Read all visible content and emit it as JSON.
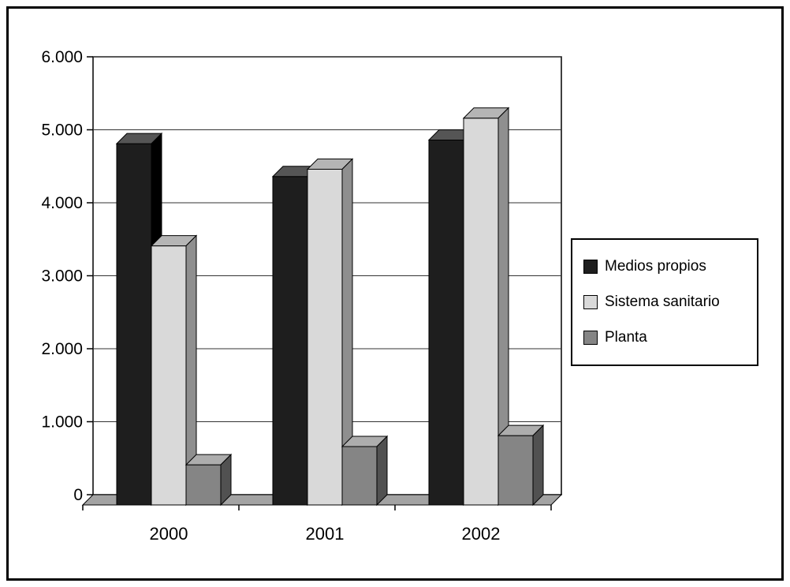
{
  "chart_data": {
    "type": "bar",
    "style": "3d-column",
    "title": "",
    "xlabel": "",
    "ylabel": "",
    "categories": [
      "2000",
      "2001",
      "2002"
    ],
    "series": [
      {
        "name": "Medios propios",
        "values": [
          4950,
          4500,
          5000
        ],
        "color": {
          "front": "#1e1e1e",
          "top": "#555555",
          "side": "#000000"
        }
      },
      {
        "name": "Sistema sanitario",
        "values": [
          3550,
          4600,
          5300
        ],
        "color": {
          "front": "#d9d9d9",
          "top": "#b5b5b5",
          "side": "#8f8f8f"
        }
      },
      {
        "name": "Planta",
        "values": [
          550,
          800,
          950
        ],
        "color": {
          "front": "#858585",
          "top": "#adadad",
          "side": "#515151"
        }
      }
    ],
    "ylim": [
      0,
      6000
    ],
    "yticks": [
      0,
      1000,
      2000,
      3000,
      4000,
      5000,
      6000
    ],
    "ytick_labels": [
      "0",
      "1.000",
      "2.000",
      "3.000",
      "4.000",
      "5.000",
      "6.000"
    ],
    "grid": true,
    "legend_position": "right",
    "colors": {
      "floor": "#a3a3a3",
      "gridline": "#333333",
      "wall_border": "#000000",
      "background": "#ffffff"
    }
  }
}
